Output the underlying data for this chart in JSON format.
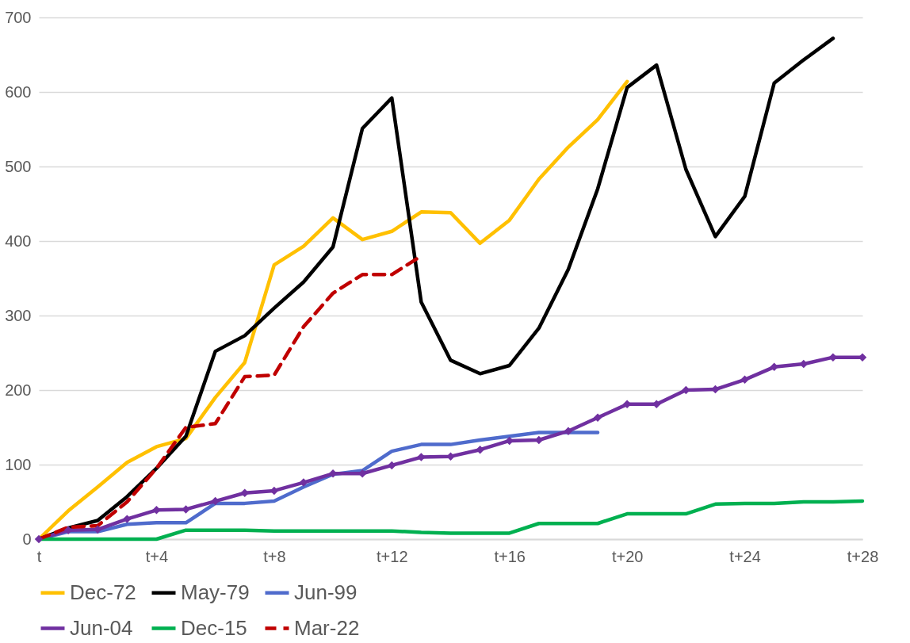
{
  "chart_data": {
    "type": "line",
    "categories": [
      "t",
      null,
      null,
      null,
      "t+4",
      null,
      null,
      null,
      "t+8",
      null,
      null,
      null,
      "t+12",
      null,
      null,
      null,
      "t+16",
      null,
      null,
      null,
      "t+20",
      null,
      null,
      null,
      "t+24",
      null,
      null,
      null,
      "t+28"
    ],
    "series": [
      {
        "name": "Dec-72",
        "color": "#ffc000",
        "values": [
          0,
          38,
          70,
          103,
          124,
          135,
          190,
          237,
          368,
          393,
          431,
          402,
          413,
          439,
          438,
          397,
          428,
          483,
          526,
          563,
          614,
          null,
          null,
          null,
          null,
          null,
          null,
          null,
          null
        ]
      },
      {
        "name": "May-79",
        "color": "#000000",
        "values": [
          0,
          15,
          25,
          57,
          95,
          138,
          252,
          273,
          310,
          345,
          392,
          551,
          592,
          318,
          240,
          222,
          233,
          283,
          362,
          470,
          606,
          636,
          496,
          406,
          460,
          612,
          643,
          672,
          null
        ]
      },
      {
        "name": "Jun-99",
        "color": "#4f6bcc",
        "values": [
          0,
          10,
          10,
          20,
          22,
          22,
          48,
          48,
          51,
          70,
          87,
          92,
          118,
          127,
          127,
          133,
          138,
          143,
          143,
          143,
          null,
          null,
          null,
          null,
          null,
          null,
          null,
          null,
          null
        ]
      },
      {
        "name": "Jun-04",
        "color": "#7030a0",
        "marker": "diamond",
        "values": [
          0,
          12,
          13,
          27,
          39,
          40,
          51,
          62,
          65,
          76,
          88,
          88,
          99,
          110,
          111,
          120,
          132,
          133,
          145,
          163,
          181,
          181,
          200,
          201,
          214,
          231,
          235,
          244,
          244
        ]
      },
      {
        "name": "Dec-15",
        "color": "#00b050",
        "values": [
          0,
          0,
          0,
          0,
          0,
          12,
          12,
          12,
          11,
          11,
          11,
          11,
          11,
          9,
          8,
          8,
          8,
          21,
          21,
          21,
          34,
          34,
          34,
          47,
          48,
          48,
          50,
          50,
          51
        ]
      },
      {
        "name": "Mar-22",
        "color": "#c00000",
        "line_style": "dashed",
        "values": [
          0,
          16,
          18,
          50,
          95,
          150,
          155,
          218,
          220,
          285,
          330,
          355,
          355,
          380,
          null,
          null,
          null,
          null,
          null,
          null,
          null,
          null,
          null,
          null,
          null,
          null,
          null,
          null,
          null
        ]
      }
    ],
    "ylim": [
      0,
      700
    ],
    "yticks": [
      0,
      100,
      200,
      300,
      400,
      500,
      600,
      700
    ],
    "grid": "y",
    "legend": "bottom"
  }
}
